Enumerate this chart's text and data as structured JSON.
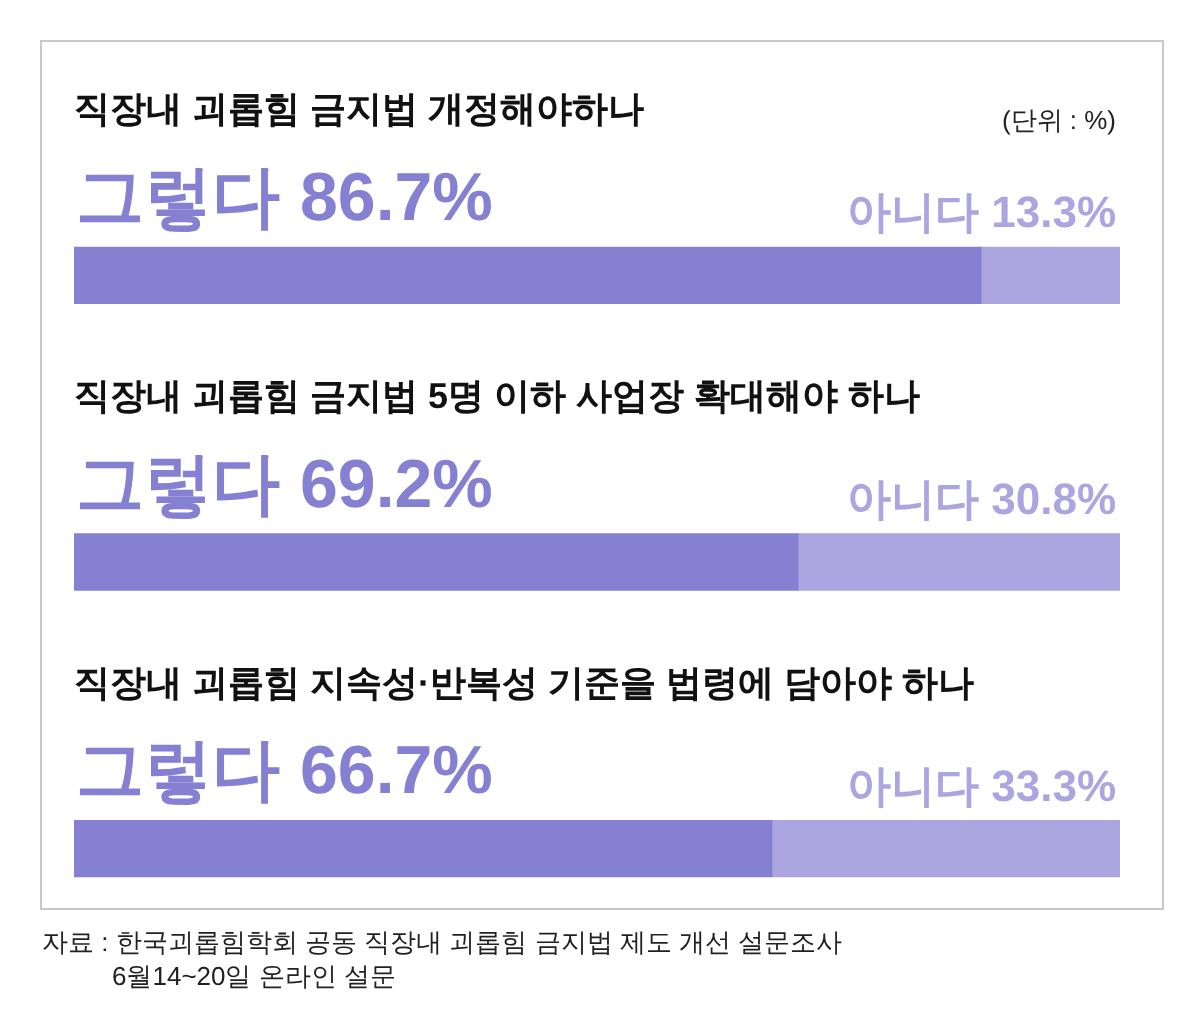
{
  "chart_data": {
    "type": "bar",
    "orientation": "horizontal",
    "stacked": true,
    "categories": [
      "직장내 괴롭힘 금지법 개정해야하나",
      "직장내 괴롭힘 금지법 5명 이하 사업장 확대해야 하나",
      "직장내 괴롭힘 지속성·반복성 기준을 법령에 담아야 하나"
    ],
    "series": [
      {
        "name": "그렇다",
        "color": "#8680d3",
        "values": [
          86.7,
          69.2,
          66.7
        ],
        "value_labels": [
          "86.7%",
          "69.2%",
          "66.7%"
        ]
      },
      {
        "name": "아니다",
        "color": "#aba5e0",
        "values": [
          13.3,
          30.8,
          33.3
        ],
        "value_labels": [
          "13.3%",
          "30.8%",
          "33.3%"
        ]
      }
    ],
    "tick_labels": "y",
    "legend": false,
    "grid": false,
    "annotations": [
      "(단위 : %)",
      "자료 : 한국괴롭힘학회 공동 직장내 괴롭힘 금지법 제도 개선 설문조사",
      "6월14~20일 온라인 설문"
    ]
  }
}
